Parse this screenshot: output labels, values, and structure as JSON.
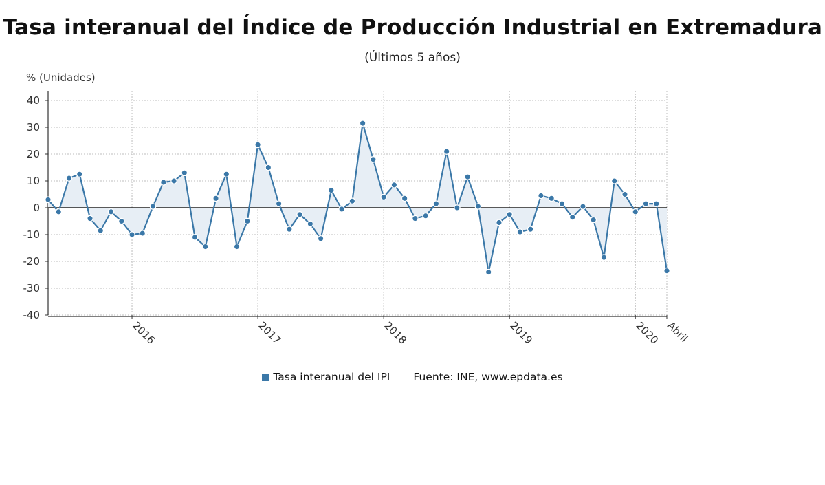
{
  "chart_data": {
    "type": "line",
    "title": "Tasa interanual del Índice de Producción Industrial en Extremadura",
    "subtitle": "(Últimos 5 años)",
    "ylabel": "% (Unidades)",
    "ylim": [
      -40,
      40
    ],
    "yticks": [
      40,
      30,
      20,
      10,
      0,
      -10,
      -20,
      -30,
      -40
    ],
    "x_start": "2015-05",
    "x_end": "2020-04",
    "xtick_labels": [
      {
        "label": "2016",
        "month": "2016-01"
      },
      {
        "label": "2017",
        "month": "2017-01"
      },
      {
        "label": "2018",
        "month": "2018-01"
      },
      {
        "label": "2019",
        "month": "2019-01"
      },
      {
        "label": "2020",
        "month": "2020-01"
      },
      {
        "label": "Abril",
        "month": "2020-04"
      }
    ],
    "grid": true,
    "series": [
      {
        "name": "Tasa interanual del IPI",
        "color": "#3b78a8",
        "fill": "#e7eef5",
        "values": [
          3,
          -1.5,
          11,
          12.5,
          -4,
          -8.5,
          -1.5,
          -5,
          -10,
          -9.5,
          0.5,
          9.5,
          10,
          13,
          -11,
          -14.5,
          3.5,
          12.5,
          -14.5,
          -5,
          23.5,
          15,
          1.5,
          -8,
          -2.5,
          -6,
          -11.5,
          6.5,
          -0.5,
          2.5,
          31.5,
          18,
          4,
          8.5,
          3.5,
          -4,
          -3,
          1.5,
          21,
          0,
          11.5,
          0.5,
          -24,
          -5.5,
          -2.5,
          -9,
          -8,
          4.5,
          3.5,
          1.5,
          -3.5,
          0.5,
          -4.5,
          -18.5,
          10,
          5,
          -1.5,
          1.5,
          1.5,
          -23.5
        ]
      }
    ]
  },
  "legend": {
    "series_label": "Tasa interanual del IPI",
    "source": "Fuente: INE, www.epdata.es"
  }
}
